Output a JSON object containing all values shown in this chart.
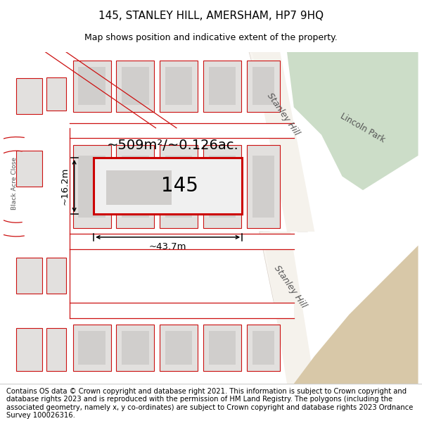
{
  "title": "145, STANLEY HILL, AMERSHAM, HP7 9HQ",
  "subtitle": "Map shows position and indicative extent of the property.",
  "footer": "Contains OS data © Crown copyright and database right 2021. This information is subject to Crown copyright and database rights 2023 and is reproduced with the permission of HM Land Registry. The polygons (including the associated geometry, namely x, y co-ordinates) are subject to Crown copyright and database rights 2023 Ordnance Survey 100026316.",
  "area_label": "~509m²/~0.126ac.",
  "width_label": "~43.7m",
  "height_label": "~16.2m",
  "house_number": "145",
  "map_bg": "#f0ede8",
  "road_fill": "#ffffff",
  "building_fill": "#e2e0de",
  "building_inner_fill": "#d0cecc",
  "building_stroke": "#c8b0b0",
  "highlight_fill": "#f0f0f0",
  "highlight_stroke": "#cc0000",
  "red_line_color": "#cc1111",
  "green_area_color": "#ccddc8",
  "tan_area_color": "#d8c8a8",
  "title_fontsize": 11,
  "subtitle_fontsize": 9,
  "footer_fontsize": 7.2,
  "label_color": "#333333",
  "road_label_color": "#555555"
}
